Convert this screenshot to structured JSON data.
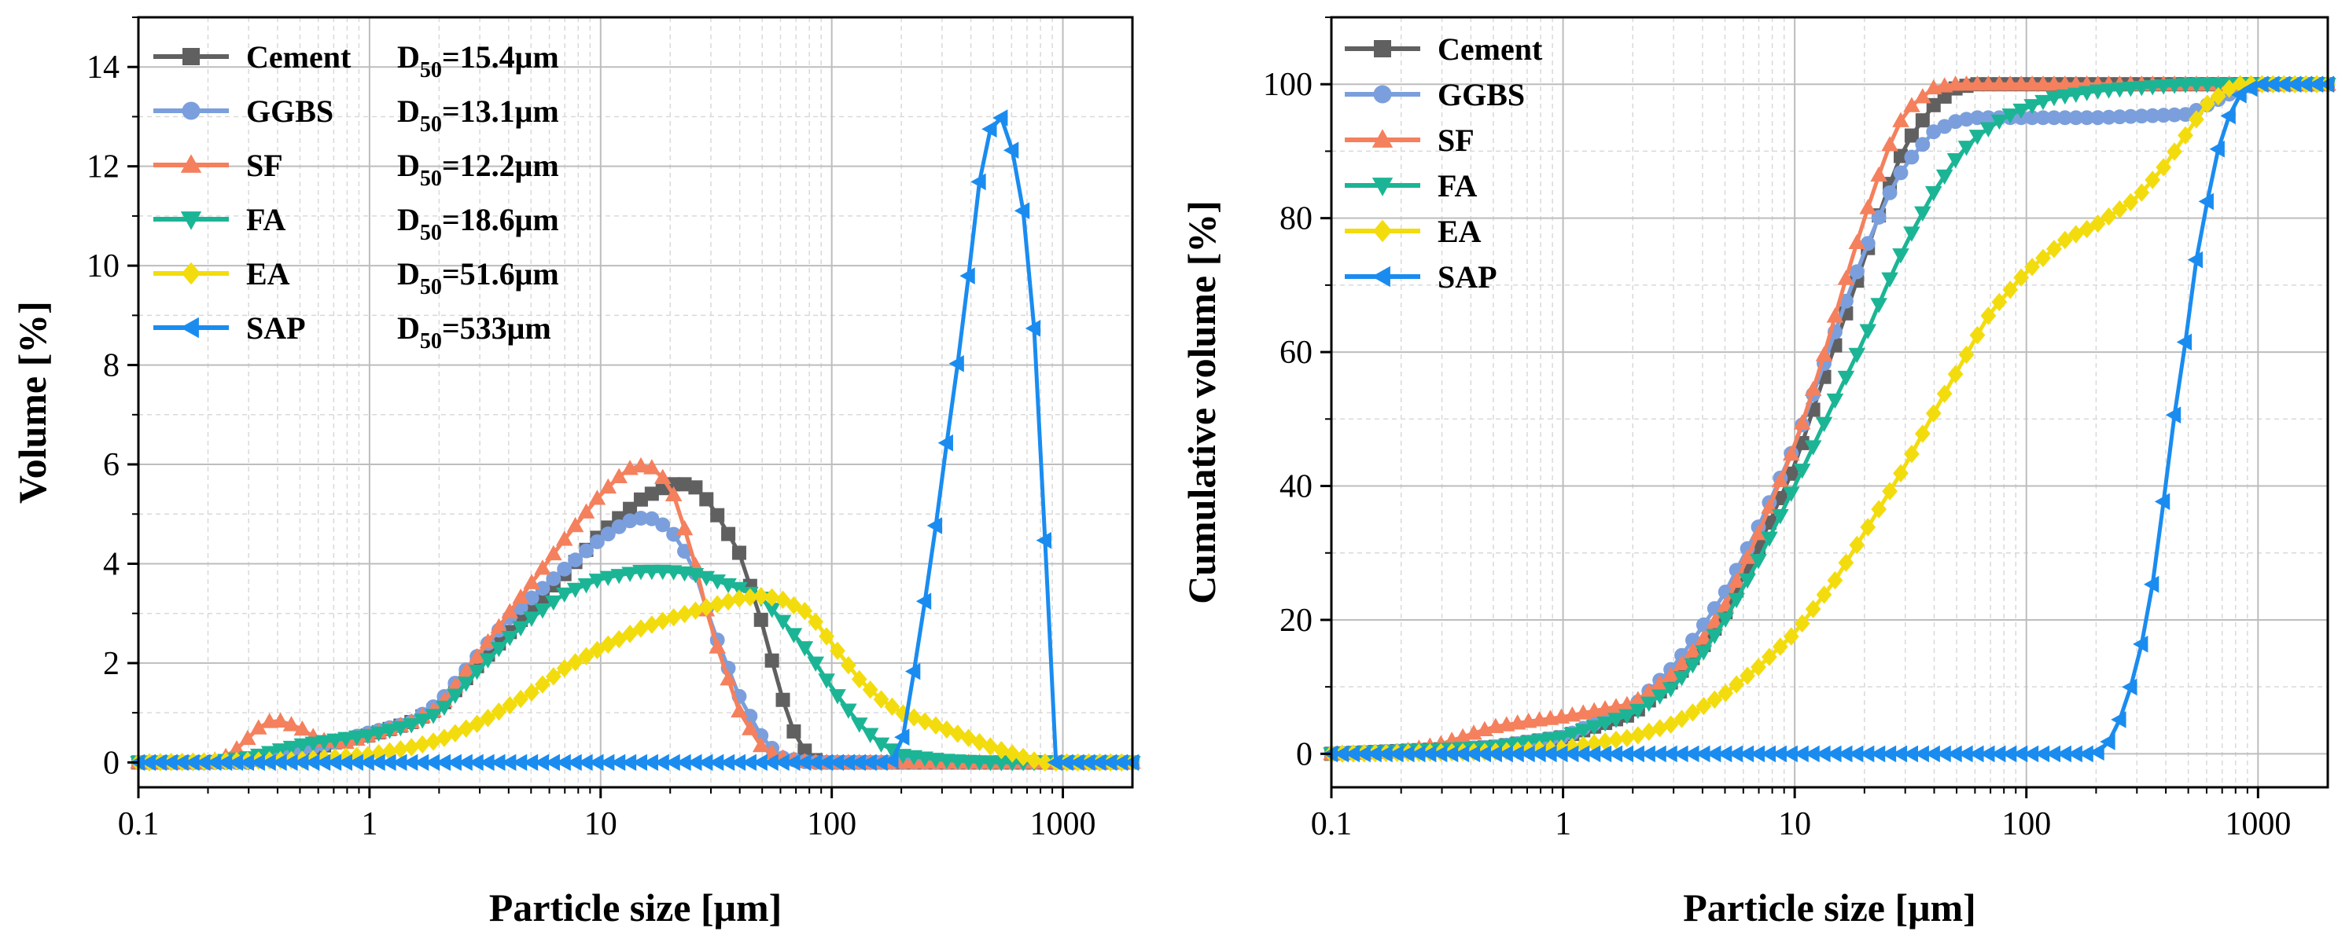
{
  "chart_data": [
    {
      "type": "line",
      "title": "",
      "xlabel": "Particle size [μm]",
      "ylabel": "Volume [%]",
      "xscale": "log",
      "xlim": [
        0.1,
        2000
      ],
      "ylim": [
        -0.5,
        15
      ],
      "xticks": [
        0.1,
        1,
        10,
        100,
        1000
      ],
      "xtick_labels": [
        "0.1",
        "1",
        "10",
        "100",
        "1000"
      ],
      "yticks": [
        0,
        2,
        4,
        6,
        8,
        10,
        12,
        14
      ],
      "ytick_labels": [
        "0",
        "2",
        "4",
        "6",
        "8",
        "10",
        "12",
        "14"
      ],
      "grid": true,
      "legend_position": "top-left",
      "series": [
        {
          "name": "Cement",
          "d50_label": "D",
          "d50_sub": "50",
          "d50_value": "=15.4μm",
          "color": "#606060",
          "marker": "square",
          "x": [
            0.1,
            0.2,
            0.3,
            0.5,
            0.7,
            1,
            1.5,
            2,
            3,
            4,
            5,
            7,
            10,
            15,
            20,
            25,
            30,
            40,
            50,
            60,
            70,
            80,
            90,
            100,
            1000,
            2000
          ],
          "y": [
            0,
            0,
            0.05,
            0.2,
            0.4,
            0.55,
            0.8,
            1.1,
            2,
            2.6,
            3.1,
            3.8,
            4.6,
            5.3,
            5.6,
            5.6,
            5.2,
            4.2,
            2.8,
            1.4,
            0.5,
            0.1,
            0,
            0,
            0,
            0
          ]
        },
        {
          "name": "GGBS",
          "d50_label": "D",
          "d50_sub": "50",
          "d50_value": "=13.1μm",
          "color": "#7b9fdc",
          "marker": "circle",
          "x": [
            0.1,
            0.2,
            0.3,
            0.5,
            0.7,
            1,
            1.5,
            2,
            3,
            4,
            5,
            7,
            10,
            13,
            16,
            20,
            25,
            30,
            40,
            50,
            60,
            80,
            100,
            1000,
            2000
          ],
          "y": [
            0,
            0,
            0,
            0.25,
            0.4,
            0.6,
            0.8,
            1.2,
            2.2,
            2.9,
            3.3,
            3.9,
            4.5,
            4.85,
            4.95,
            4.7,
            4.0,
            2.8,
            1.3,
            0.5,
            0.1,
            0,
            0,
            0,
            0
          ]
        },
        {
          "name": "SF",
          "d50_label": "D",
          "d50_sub": "50",
          "d50_value": "=12.2μm",
          "color": "#f4805d",
          "marker": "triangle-up",
          "x": [
            0.1,
            0.2,
            0.25,
            0.3,
            0.35,
            0.4,
            0.5,
            0.6,
            0.8,
            1,
            1.5,
            2,
            3,
            4,
            5,
            7,
            10,
            13,
            16,
            20,
            25,
            30,
            40,
            50,
            60,
            80,
            100,
            200,
            1000,
            2000
          ],
          "y": [
            0,
            0,
            0.15,
            0.5,
            0.8,
            0.85,
            0.7,
            0.45,
            0.4,
            0.55,
            0.8,
            1.1,
            2.2,
            3.0,
            3.6,
            4.5,
            5.4,
            5.9,
            6.0,
            5.6,
            4.2,
            2.7,
            1.0,
            0.3,
            0.1,
            0,
            0,
            0,
            0,
            0
          ]
        },
        {
          "name": "FA",
          "d50_label": "D",
          "d50_sub": "50",
          "d50_value": "=18.6μm",
          "color": "#1bb595",
          "marker": "triangle-down",
          "x": [
            0.1,
            0.2,
            0.3,
            0.5,
            0.7,
            1,
            1.5,
            2,
            3,
            4,
            5,
            7,
            10,
            15,
            20,
            25,
            30,
            40,
            50,
            60,
            80,
            100,
            130,
            160,
            200,
            300,
            500,
            1000,
            2000
          ],
          "y": [
            0,
            0,
            0.1,
            0.35,
            0.45,
            0.55,
            0.75,
            1.0,
            1.9,
            2.5,
            2.9,
            3.4,
            3.7,
            3.85,
            3.85,
            3.8,
            3.7,
            3.5,
            3.3,
            2.9,
            2.2,
            1.5,
            0.8,
            0.4,
            0.15,
            0.05,
            0,
            0,
            0
          ]
        },
        {
          "name": "EA",
          "d50_label": "D",
          "d50_sub": "50",
          "d50_value": "=51.6μm",
          "color": "#f3dc0e",
          "marker": "diamond",
          "x": [
            0.1,
            0.5,
            1,
            1.5,
            2,
            3,
            5,
            7,
            10,
            15,
            20,
            30,
            40,
            50,
            60,
            80,
            100,
            130,
            160,
            200,
            300,
            500,
            800,
            1000,
            2000
          ],
          "y": [
            0,
            0.05,
            0.15,
            0.3,
            0.45,
            0.8,
            1.4,
            1.9,
            2.3,
            2.7,
            2.9,
            3.15,
            3.3,
            3.35,
            3.3,
            3.0,
            2.4,
            1.7,
            1.3,
            1.0,
            0.7,
            0.3,
            0,
            0,
            0
          ]
        },
        {
          "name": "SAP",
          "d50_label": "D",
          "d50_sub": "50",
          "d50_value": "=533μm",
          "color": "#1a8cf0",
          "marker": "triangle-left",
          "x": [
            0.1,
            1,
            10,
            100,
            180,
            200,
            230,
            270,
            320,
            380,
            420,
            480,
            530,
            600,
            680,
            800,
            900,
            1000,
            2000
          ],
          "y": [
            0,
            0,
            0,
            0,
            0,
            0.3,
            2.0,
            4.1,
            6.7,
            9.2,
            11.3,
            12.7,
            13.1,
            12.4,
            11.0,
            7.3,
            0,
            0,
            0
          ]
        }
      ]
    },
    {
      "type": "line",
      "title": "",
      "xlabel": "Particle size [μm]",
      "ylabel": "Cumulative volume [%]",
      "xscale": "log",
      "xlim": [
        0.1,
        2000
      ],
      "ylim": [
        -5,
        110
      ],
      "xticks": [
        0.1,
        1,
        10,
        100,
        1000
      ],
      "xtick_labels": [
        "0.1",
        "1",
        "10",
        "100",
        "1000"
      ],
      "yticks": [
        0,
        20,
        40,
        60,
        80,
        100
      ],
      "ytick_labels": [
        "0",
        "20",
        "40",
        "60",
        "80",
        "100"
      ],
      "grid": true,
      "legend_position": "top-left",
      "series": [
        {
          "name": "Cement",
          "color": "#606060",
          "marker": "square",
          "x": [
            0.1,
            0.5,
            1,
            2,
            3,
            4,
            5,
            7,
            10,
            13,
            16,
            20,
            25,
            30,
            40,
            50,
            60,
            80,
            100,
            1000,
            2000
          ],
          "y": [
            0,
            1,
            2.5,
            6,
            11,
            16,
            21,
            31,
            43,
            55,
            64,
            74,
            84,
            91,
            97,
            99.5,
            100,
            100,
            100,
            100,
            100
          ]
        },
        {
          "name": "GGBS",
          "color": "#7b9fdc",
          "marker": "circle",
          "x": [
            0.1,
            0.5,
            1,
            2,
            3,
            4,
            5,
            7,
            10,
            13,
            16,
            20,
            25,
            30,
            40,
            50,
            60,
            80,
            100,
            200,
            500,
            800,
            1000,
            2000
          ],
          "y": [
            0,
            1,
            2.5,
            7,
            13,
            19,
            24,
            34,
            46,
            57,
            66,
            75,
            83,
            88,
            93,
            94.5,
            95,
            95,
            95,
            95,
            95.5,
            99,
            100,
            100
          ]
        },
        {
          "name": "SF",
          "color": "#f4805d",
          "marker": "triangle-up",
          "x": [
            0.1,
            0.2,
            0.3,
            0.5,
            0.7,
            1,
            2,
            3,
            4,
            5,
            7,
            10,
            13,
            16,
            20,
            25,
            30,
            40,
            50,
            60,
            80,
            100,
            1000,
            2000
          ],
          "y": [
            0,
            0.3,
            1.5,
            4,
            4.8,
            5.5,
            7.5,
            12,
            17,
            22,
            33,
            46,
            58,
            69,
            80,
            90,
            96,
            99.5,
            100,
            100,
            100,
            100,
            100,
            100
          ]
        },
        {
          "name": "FA",
          "color": "#1bb595",
          "marker": "triangle-down",
          "x": [
            0.1,
            0.5,
            1,
            2,
            3,
            4,
            5,
            7,
            10,
            15,
            20,
            25,
            30,
            40,
            50,
            60,
            80,
            100,
            130,
            200,
            300,
            500,
            1000,
            2000
          ],
          "y": [
            0,
            1,
            2.5,
            6,
            10,
            15,
            20,
            29,
            40,
            53,
            62,
            70,
            76,
            84,
            89,
            92,
            95,
            96.5,
            98,
            99,
            99.5,
            100,
            100,
            100
          ]
        },
        {
          "name": "EA",
          "color": "#f3dc0e",
          "marker": "diamond",
          "x": [
            0.1,
            0.5,
            1,
            2,
            3,
            5,
            7,
            10,
            15,
            20,
            30,
            40,
            50,
            70,
            100,
            150,
            200,
            300,
            400,
            500,
            600,
            800,
            1000,
            2000
          ],
          "y": [
            0,
            0.3,
            0.8,
            2.5,
            4.5,
            9,
            13,
            18,
            26,
            33,
            43,
            51,
            57,
            66,
            72,
            77,
            79,
            83,
            88,
            93,
            97,
            100,
            100,
            100
          ]
        },
        {
          "name": "SAP",
          "color": "#1a8cf0",
          "marker": "triangle-left",
          "x": [
            0.1,
            1,
            10,
            100,
            200,
            230,
            260,
            300,
            340,
            380,
            420,
            480,
            530,
            600,
            680,
            800,
            1000,
            2000
          ],
          "y": [
            0,
            0,
            0,
            0,
            0,
            2,
            6,
            13,
            22,
            34,
            47,
            60,
            72,
            82,
            91,
            98,
            100,
            100
          ]
        }
      ]
    }
  ]
}
